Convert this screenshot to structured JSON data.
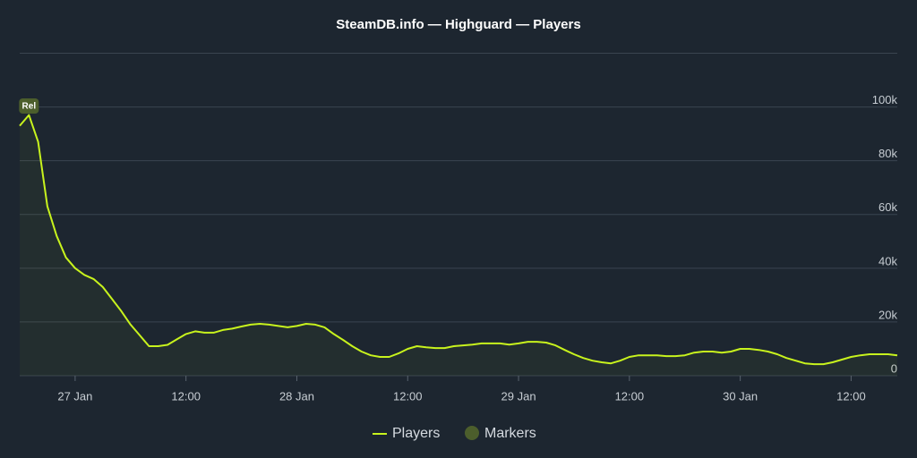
{
  "chart_data": {
    "type": "line",
    "title": "SteamDB.info — Highguard — Players",
    "x": [
      "26 Jan 18:00",
      "26 Jan 19:00",
      "26 Jan 20:00",
      "26 Jan 21:00",
      "26 Jan 22:00",
      "26 Jan 23:00",
      "27 Jan 00:00",
      "27 Jan 01:00",
      "27 Jan 02:00",
      "27 Jan 03:00",
      "27 Jan 04:00",
      "27 Jan 05:00",
      "27 Jan 06:00",
      "27 Jan 07:00",
      "27 Jan 08:00",
      "27 Jan 09:00",
      "27 Jan 10:00",
      "27 Jan 11:00",
      "27 Jan 12:00",
      "27 Jan 13:00",
      "27 Jan 14:00",
      "27 Jan 15:00",
      "27 Jan 16:00",
      "27 Jan 17:00",
      "27 Jan 18:00",
      "27 Jan 19:00",
      "27 Jan 20:00",
      "27 Jan 21:00",
      "27 Jan 22:00",
      "27 Jan 23:00",
      "28 Jan 00:00",
      "28 Jan 01:00",
      "28 Jan 02:00",
      "28 Jan 03:00",
      "28 Jan 04:00",
      "28 Jan 05:00",
      "28 Jan 06:00",
      "28 Jan 07:00",
      "28 Jan 08:00",
      "28 Jan 09:00",
      "28 Jan 10:00",
      "28 Jan 11:00",
      "28 Jan 12:00",
      "28 Jan 13:00",
      "28 Jan 14:00",
      "28 Jan 15:00",
      "28 Jan 16:00",
      "28 Jan 17:00",
      "28 Jan 18:00",
      "28 Jan 19:00",
      "28 Jan 20:00",
      "28 Jan 21:00",
      "28 Jan 22:00",
      "28 Jan 23:00",
      "29 Jan 00:00",
      "29 Jan 01:00",
      "29 Jan 02:00",
      "29 Jan 03:00",
      "29 Jan 04:00",
      "29 Jan 05:00",
      "29 Jan 06:00",
      "29 Jan 07:00",
      "29 Jan 08:00",
      "29 Jan 09:00",
      "29 Jan 10:00",
      "29 Jan 11:00",
      "29 Jan 12:00",
      "29 Jan 13:00",
      "29 Jan 14:00",
      "29 Jan 15:00",
      "29 Jan 16:00",
      "29 Jan 17:00",
      "29 Jan 18:00",
      "29 Jan 19:00",
      "29 Jan 20:00",
      "29 Jan 21:00",
      "29 Jan 22:00",
      "29 Jan 23:00",
      "30 Jan 00:00",
      "30 Jan 01:00",
      "30 Jan 02:00",
      "30 Jan 03:00",
      "30 Jan 04:00",
      "30 Jan 05:00",
      "30 Jan 06:00",
      "30 Jan 07:00",
      "30 Jan 08:00",
      "30 Jan 09:00",
      "30 Jan 10:00",
      "30 Jan 11:00",
      "30 Jan 12:00",
      "30 Jan 13:00",
      "30 Jan 14:00",
      "30 Jan 15:00",
      "30 Jan 16:00",
      "30 Jan 17:00"
    ],
    "series": [
      {
        "name": "Players",
        "color": "#c8f31d",
        "values": [
          93000,
          97000,
          87000,
          63000,
          52000,
          44000,
          40000,
          37500,
          36000,
          33000,
          28500,
          24000,
          19000,
          15000,
          11000,
          11000,
          11500,
          13500,
          15500,
          16500,
          16000,
          16000,
          17000,
          17500,
          18300,
          19000,
          19300,
          19000,
          18500,
          18000,
          18500,
          19300,
          19000,
          18000,
          15500,
          13300,
          11000,
          9000,
          7600,
          7000,
          7000,
          8300,
          10000,
          11000,
          10600,
          10300,
          10300,
          11000,
          11300,
          11600,
          12000,
          12000,
          12000,
          11600,
          12000,
          12600,
          12600,
          12300,
          11300,
          9600,
          8000,
          6600,
          5600,
          5000,
          4600,
          5600,
          7000,
          7600,
          7600,
          7600,
          7300,
          7300,
          7600,
          8600,
          9000,
          9000,
          8600,
          9000,
          10000,
          10000,
          9600,
          9000,
          8000,
          6600,
          5600,
          4600,
          4300,
          4300,
          5000,
          6000,
          7000,
          7600,
          8000,
          8000,
          8000,
          7600
        ]
      }
    ],
    "markers": [
      {
        "x": "26 Jan 19:00",
        "label": "Rel"
      }
    ],
    "legend": [
      "Players",
      "Markers"
    ],
    "marker_color": "#4c5e2c",
    "xlim": [
      "26 Jan 18:00",
      "30 Jan 17:00"
    ],
    "xticks": [
      {
        "value": "27 Jan 00:00",
        "label": "27 Jan"
      },
      {
        "value": "27 Jan 12:00",
        "label": "12:00"
      },
      {
        "value": "28 Jan 00:00",
        "label": "28 Jan"
      },
      {
        "value": "28 Jan 12:00",
        "label": "12:00"
      },
      {
        "value": "29 Jan 00:00",
        "label": "29 Jan"
      },
      {
        "value": "29 Jan 12:00",
        "label": "12:00"
      },
      {
        "value": "30 Jan 00:00",
        "label": "30 Jan"
      },
      {
        "value": "30 Jan 12:00",
        "label": "12:00"
      }
    ],
    "ylim": [
      0,
      120000
    ],
    "yticks": [
      0,
      {
        "value": 20000,
        "label": "20k"
      },
      {
        "value": 40000,
        "label": "40k"
      },
      {
        "value": 60000,
        "label": "60k"
      },
      {
        "value": 80000,
        "label": "80k"
      },
      {
        "value": 100000,
        "label": "100k"
      }
    ],
    "grid": true
  }
}
